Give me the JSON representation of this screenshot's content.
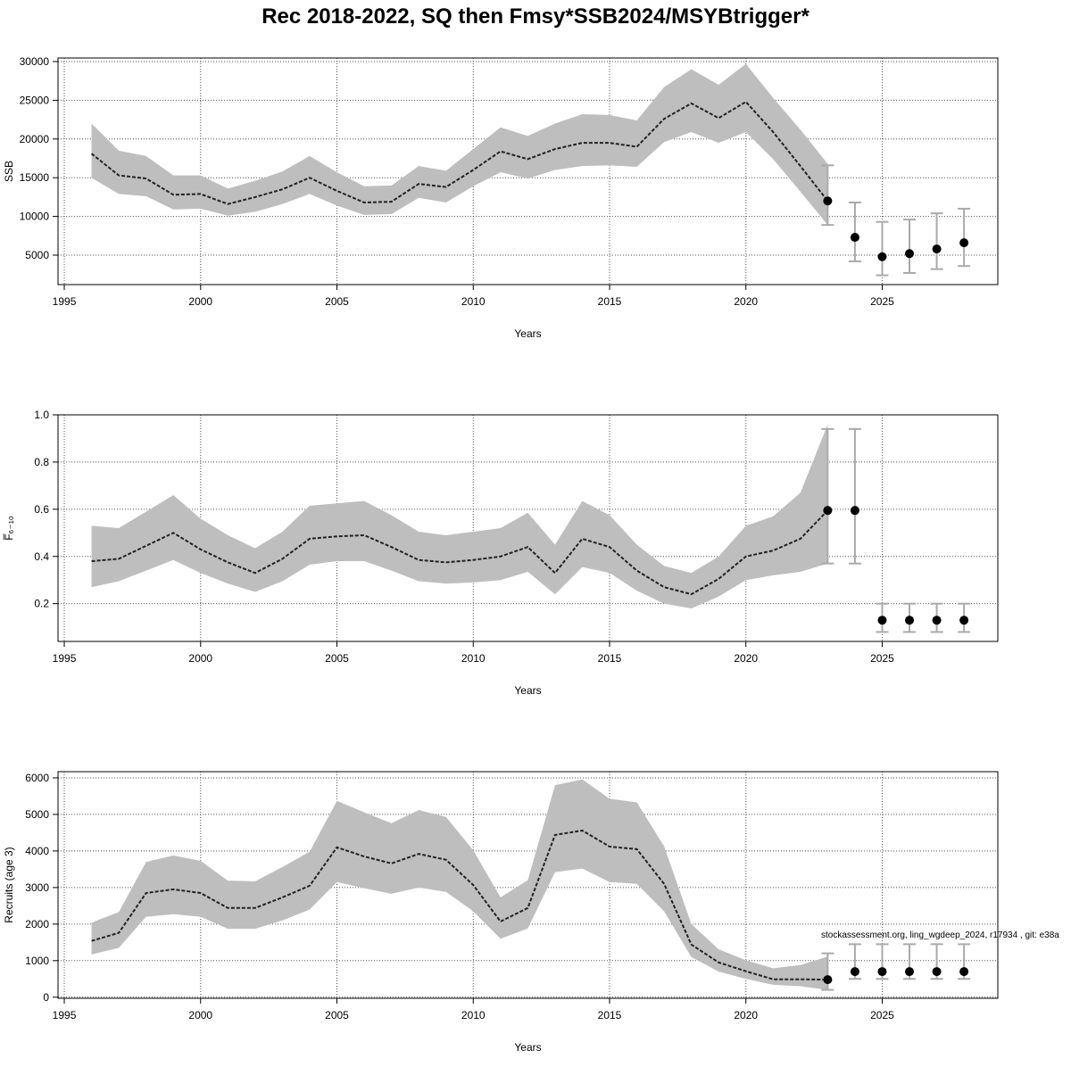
{
  "title": "Rec 2018-2022, SQ then Fmsy*SSB2024/MSYBtrigger*",
  "annotation": "stockassessment.org, ling_wgdeep_2024, r17934 , git: e38a",
  "chart_data": [
    {
      "type": "line",
      "xlabel": "Years",
      "ylabel": "SSB",
      "band_color": "#bebebe",
      "line_color": "#222222",
      "point_color": "#000000",
      "errorbar_color": "#aaaaaa",
      "grid": true,
      "xlim": [
        1994.77,
        2029.24
      ],
      "xticks": [
        1995,
        2000,
        2005,
        2010,
        2015,
        2020,
        2025
      ],
      "ylim": [
        1200,
        30460
      ],
      "yticks": [
        5000,
        10000,
        15000,
        20000,
        25000,
        30000
      ],
      "x": [
        1996,
        1997,
        1998,
        1999,
        2000,
        2001,
        2002,
        2003,
        2004,
        2005,
        2006,
        2007,
        2008,
        2009,
        2010,
        2011,
        2012,
        2013,
        2014,
        2015,
        2016,
        2017,
        2018,
        2019,
        2020,
        2021,
        2022,
        2023
      ],
      "values": [
        18100,
        15300,
        14900,
        12800,
        12900,
        11600,
        12500,
        13500,
        15000,
        13300,
        11800,
        11900,
        14200,
        13800,
        16000,
        18400,
        17400,
        18700,
        19500,
        19500,
        19000,
        22600,
        24600,
        22700,
        24800,
        20900,
        16500,
        12000
      ],
      "lower": [
        15000,
        12900,
        12600,
        10900,
        11000,
        10100,
        10600,
        11600,
        12900,
        11400,
        10200,
        10300,
        12400,
        11800,
        13900,
        15700,
        14900,
        16000,
        16500,
        16600,
        16400,
        19600,
        20900,
        19500,
        20900,
        17400,
        13200,
        8900
      ],
      "upper": [
        22000,
        18500,
        17800,
        15300,
        15300,
        13600,
        14600,
        15800,
        17800,
        15700,
        13900,
        14000,
        16500,
        15900,
        18700,
        21500,
        20400,
        22000,
        23200,
        23100,
        22400,
        26700,
        29000,
        27000,
        29700,
        25300,
        21200,
        16800
      ],
      "projection": {
        "x": [
          2023,
          2024,
          2025,
          2026,
          2027,
          2028
        ],
        "values": [
          12000,
          7300,
          4800,
          5200,
          5800,
          6600
        ],
        "lower": [
          8900,
          4200,
          2400,
          2700,
          3200,
          3600
        ],
        "upper": [
          16600,
          11800,
          9300,
          9600,
          10400,
          11000
        ]
      }
    },
    {
      "type": "line",
      "xlabel": "Years",
      "ylabel": "F̅₆₋₁₀",
      "band_color": "#bebebe",
      "line_color": "#222222",
      "point_color": "#000000",
      "errorbar_color": "#aaaaaa",
      "grid": true,
      "xlim": [
        1994.77,
        2029.24
      ],
      "xticks": [
        1995,
        2000,
        2005,
        2010,
        2015,
        2020,
        2025
      ],
      "ylim": [
        0.04,
        1.0
      ],
      "yticks": [
        0.2,
        0.4,
        0.6,
        0.8,
        {
          "value": 1,
          "label": "1.0"
        }
      ],
      "x": [
        1996,
        1997,
        1998,
        1999,
        2000,
        2001,
        2002,
        2003,
        2004,
        2005,
        2006,
        2007,
        2008,
        2009,
        2010,
        2011,
        2012,
        2013,
        2014,
        2015,
        2016,
        2017,
        2018,
        2019,
        2020,
        2021,
        2022,
        2023
      ],
      "values": [
        0.38,
        0.39,
        0.445,
        0.5,
        0.43,
        0.375,
        0.33,
        0.39,
        0.475,
        0.485,
        0.49,
        0.44,
        0.385,
        0.375,
        0.385,
        0.4,
        0.44,
        0.33,
        0.475,
        0.44,
        0.34,
        0.27,
        0.24,
        0.305,
        0.4,
        0.425,
        0.475,
        0.595
      ],
      "lower": [
        0.27,
        0.295,
        0.34,
        0.385,
        0.33,
        0.285,
        0.25,
        0.295,
        0.365,
        0.38,
        0.38,
        0.34,
        0.295,
        0.285,
        0.29,
        0.3,
        0.335,
        0.24,
        0.355,
        0.33,
        0.255,
        0.2,
        0.18,
        0.23,
        0.3,
        0.32,
        0.335,
        0.37
      ],
      "upper": [
        0.53,
        0.52,
        0.59,
        0.66,
        0.56,
        0.49,
        0.435,
        0.505,
        0.615,
        0.625,
        0.635,
        0.575,
        0.505,
        0.49,
        0.505,
        0.52,
        0.585,
        0.45,
        0.635,
        0.575,
        0.45,
        0.36,
        0.33,
        0.4,
        0.53,
        0.57,
        0.67,
        0.96
      ],
      "projection": {
        "x": [
          2023,
          2024,
          2025,
          2026,
          2027,
          2028
        ],
        "values": [
          0.595,
          0.595,
          0.13,
          0.13,
          0.13,
          0.13
        ],
        "lower": [
          0.37,
          0.37,
          0.08,
          0.08,
          0.08,
          0.08
        ],
        "upper": [
          0.94,
          0.94,
          0.2,
          0.2,
          0.2,
          0.2
        ]
      }
    },
    {
      "type": "line",
      "xlabel": "Years",
      "ylabel": "Recruits (age 3)",
      "band_color": "#bebebe",
      "line_color": "#222222",
      "point_color": "#000000",
      "errorbar_color": "#aaaaaa",
      "grid": true,
      "xlim": [
        1994.77,
        2029.24
      ],
      "xticks": [
        1995,
        2000,
        2005,
        2010,
        2015,
        2020,
        2025
      ],
      "ylim": [
        -30,
        6170
      ],
      "yticks": [
        0,
        1000,
        2000,
        3000,
        4000,
        5000,
        6000
      ],
      "x": [
        1996,
        1997,
        1998,
        1999,
        2000,
        2001,
        2002,
        2003,
        2004,
        2005,
        2006,
        2007,
        2008,
        2009,
        2010,
        2011,
        2012,
        2013,
        2014,
        2015,
        2016,
        2017,
        2018,
        2019,
        2020,
        2021,
        2022,
        2023
      ],
      "values": [
        1540,
        1760,
        2850,
        2950,
        2850,
        2440,
        2440,
        2730,
        3050,
        4100,
        3850,
        3660,
        3920,
        3760,
        3070,
        2070,
        2440,
        4440,
        4560,
        4120,
        4050,
        3100,
        1440,
        950,
        710,
        490,
        490,
        480
      ],
      "lower": [
        1170,
        1350,
        2200,
        2270,
        2200,
        1870,
        1870,
        2100,
        2400,
        3150,
        2980,
        2830,
        3000,
        2880,
        2350,
        1600,
        1880,
        3420,
        3520,
        3150,
        3100,
        2350,
        1100,
        700,
        500,
        340,
        300,
        200
      ],
      "upper": [
        2040,
        2330,
        3700,
        3880,
        3730,
        3190,
        3170,
        3560,
        3980,
        5370,
        5060,
        4760,
        5120,
        4930,
        4020,
        2730,
        3200,
        5800,
        5960,
        5430,
        5330,
        4130,
        2000,
        1310,
        1010,
        790,
        880,
        1110
      ],
      "projection": {
        "x": [
          2023,
          2024,
          2025,
          2026,
          2027,
          2028
        ],
        "values": [
          480,
          700,
          700,
          700,
          700,
          700
        ],
        "lower": [
          200,
          500,
          500,
          500,
          500,
          500
        ],
        "upper": [
          1200,
          1450,
          1450,
          1450,
          1450,
          1450
        ]
      }
    }
  ]
}
